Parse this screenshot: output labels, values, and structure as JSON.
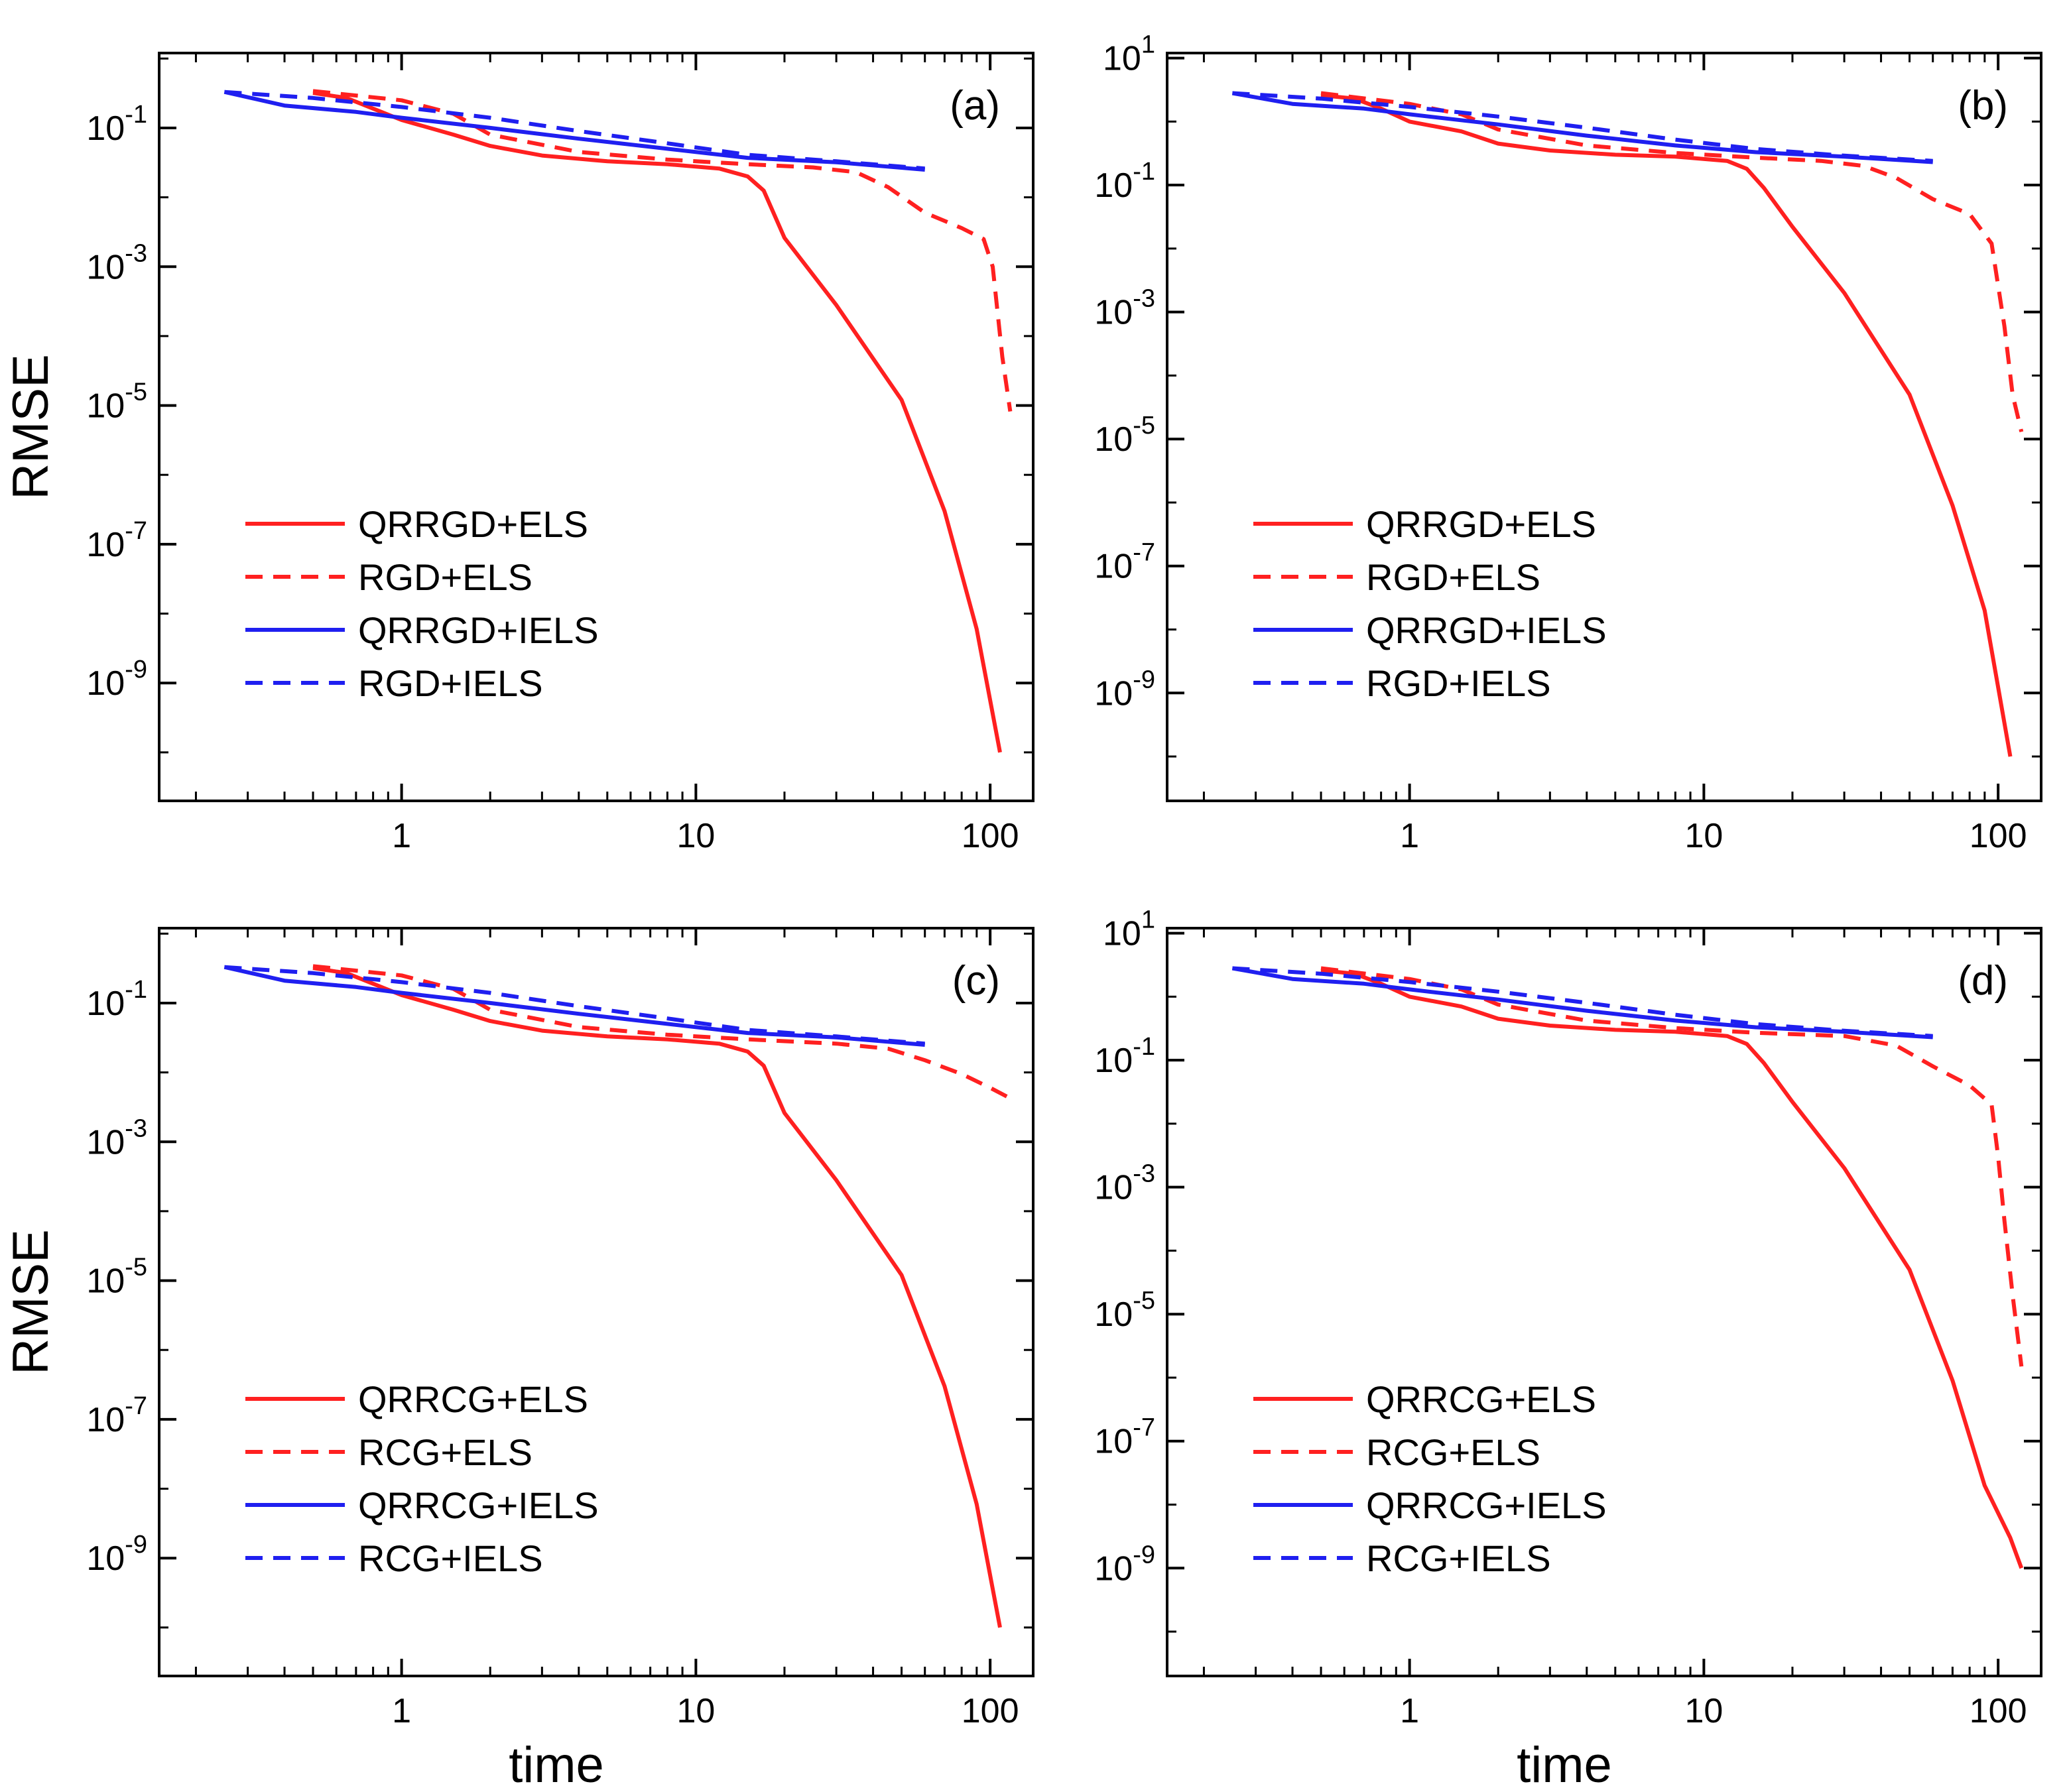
{
  "figure": {
    "shared_xlabel": "time",
    "shared_ylabel": "RMSE",
    "colors": {
      "red": "#ff2020",
      "blue": "#1f1ff0",
      "axis": "#000000"
    }
  },
  "chart_data": [
    {
      "type": "line",
      "panel_label": "(a)",
      "xlabel": "",
      "ylabel": "RMSE",
      "xscale": "log",
      "yscale": "log",
      "xlim": [
        0.15,
        140
      ],
      "ylim": [
        2e-11,
        1.2
      ],
      "x_ticks": [
        1,
        10,
        100
      ],
      "x_tick_labels": [
        "1",
        "10",
        "100"
      ],
      "y_ticks": [
        0.1,
        0.001,
        1e-05,
        1e-07,
        1e-09
      ],
      "y_tick_labels": [
        {
          "base": "10",
          "exp": "-1"
        },
        {
          "base": "10",
          "exp": "-3"
        },
        {
          "base": "10",
          "exp": "-5"
        },
        {
          "base": "10",
          "exp": "-7"
        },
        {
          "base": "10",
          "exp": "-9"
        }
      ],
      "legend_position": "lower-left",
      "series": [
        {
          "name": "QRRGD+ELS",
          "color": "#ff2020",
          "dash": "solid",
          "x": [
            0.5,
            0.65,
            0.8,
            1.0,
            1.5,
            2,
            3,
            5,
            8,
            12,
            15,
            17,
            20,
            30,
            50,
            70,
            90,
            108
          ],
          "y": [
            0.32,
            0.27,
            0.19,
            0.13,
            0.08,
            0.055,
            0.04,
            0.033,
            0.03,
            0.026,
            0.02,
            0.0125,
            0.0026,
            0.00028,
            1.2e-05,
            3e-07,
            6e-09,
            1e-10
          ]
        },
        {
          "name": "RGD+ELS",
          "color": "#ff2020",
          "dash": "dashed",
          "x": [
            0.5,
            1,
            1.5,
            2,
            4,
            8,
            15,
            25,
            35,
            45,
            60,
            80,
            95,
            102,
            110,
            117
          ],
          "y": [
            0.34,
            0.25,
            0.16,
            0.08,
            0.045,
            0.035,
            0.03,
            0.027,
            0.023,
            0.014,
            0.006,
            0.0036,
            0.0025,
            0.001,
            5e-05,
            8.2e-06
          ]
        },
        {
          "name": "QRRGD+IELS",
          "color": "#1f1ff0",
          "dash": "solid",
          "x": [
            0.25,
            0.4,
            0.7,
            1,
            2,
            4,
            8,
            15,
            30,
            60
          ],
          "y": [
            0.33,
            0.21,
            0.17,
            0.14,
            0.1,
            0.07,
            0.05,
            0.037,
            0.032,
            0.025
          ]
        },
        {
          "name": "RGD+IELS",
          "color": "#1f1ff0",
          "dash": "dashed",
          "x": [
            0.25,
            0.5,
            1,
            2,
            4,
            8,
            15,
            30,
            60
          ],
          "y": [
            0.33,
            0.27,
            0.2,
            0.14,
            0.09,
            0.06,
            0.041,
            0.033,
            0.026
          ]
        }
      ]
    },
    {
      "type": "line",
      "panel_label": "(b)",
      "xlabel": "",
      "ylabel": "",
      "xscale": "log",
      "yscale": "log",
      "xlim": [
        0.15,
        140
      ],
      "ylim": [
        2e-11,
        12
      ],
      "x_ticks": [
        1,
        10,
        100
      ],
      "x_tick_labels": [
        "1",
        "10",
        "100"
      ],
      "y_ticks": [
        10,
        0.1,
        0.001,
        1e-05,
        1e-07,
        1e-09
      ],
      "y_tick_labels": [
        {
          "base": "10",
          "exp": "1"
        },
        {
          "base": "10",
          "exp": "-1"
        },
        {
          "base": "10",
          "exp": "-3"
        },
        {
          "base": "10",
          "exp": "-5"
        },
        {
          "base": "10",
          "exp": "-7"
        },
        {
          "base": "10",
          "exp": "-9"
        }
      ],
      "legend_position": "lower-left",
      "series": [
        {
          "name": "QRRGD+ELS",
          "color": "#ff2020",
          "dash": "solid",
          "x": [
            0.5,
            0.65,
            0.8,
            1.0,
            1.5,
            2,
            3,
            5,
            8,
            12,
            14,
            16,
            20,
            30,
            50,
            70,
            90,
            110
          ],
          "y": [
            2.6,
            2.3,
            1.6,
            1.0,
            0.7,
            0.45,
            0.35,
            0.3,
            0.28,
            0.24,
            0.18,
            0.09,
            0.022,
            0.002,
            5e-05,
            9e-07,
            2e-08,
            1e-10
          ]
        },
        {
          "name": "RGD+ELS",
          "color": "#ff2020",
          "dash": "dashed",
          "x": [
            0.5,
            1,
            1.5,
            2,
            4,
            8,
            15,
            25,
            35,
            45,
            60,
            80,
            95,
            105,
            112,
            120
          ],
          "y": [
            2.8,
            1.9,
            1.3,
            0.75,
            0.42,
            0.32,
            0.27,
            0.24,
            0.2,
            0.13,
            0.06,
            0.035,
            0.012,
            0.0006,
            5e-05,
            1.3e-05
          ]
        },
        {
          "name": "QRRGD+IELS",
          "color": "#1f1ff0",
          "dash": "solid",
          "x": [
            0.25,
            0.4,
            0.7,
            1,
            2,
            4,
            8,
            15,
            30,
            60
          ],
          "y": [
            2.8,
            1.9,
            1.6,
            1.3,
            0.9,
            0.6,
            0.42,
            0.33,
            0.28,
            0.23
          ]
        },
        {
          "name": "RGD+IELS",
          "color": "#1f1ff0",
          "dash": "dashed",
          "x": [
            0.25,
            0.5,
            1,
            2,
            4,
            8,
            15,
            30,
            60
          ],
          "y": [
            2.8,
            2.3,
            1.7,
            1.2,
            0.8,
            0.52,
            0.37,
            0.29,
            0.24
          ]
        }
      ]
    },
    {
      "type": "line",
      "panel_label": "(c)",
      "xlabel": "time",
      "ylabel": "RMSE",
      "xscale": "log",
      "yscale": "log",
      "xlim": [
        0.15,
        140
      ],
      "ylim": [
        2e-11,
        1.2
      ],
      "x_ticks": [
        1,
        10,
        100
      ],
      "x_tick_labels": [
        "1",
        "10",
        "100"
      ],
      "y_ticks": [
        0.1,
        0.001,
        1e-05,
        1e-07,
        1e-09
      ],
      "y_tick_labels": [
        {
          "base": "10",
          "exp": "-1"
        },
        {
          "base": "10",
          "exp": "-3"
        },
        {
          "base": "10",
          "exp": "-5"
        },
        {
          "base": "10",
          "exp": "-7"
        },
        {
          "base": "10",
          "exp": "-9"
        }
      ],
      "legend_position": "lower-left",
      "series": [
        {
          "name": "QRRCG+ELS",
          "color": "#ff2020",
          "dash": "solid",
          "x": [
            0.5,
            0.65,
            0.8,
            1.0,
            1.5,
            2,
            3,
            5,
            8,
            12,
            15,
            17,
            20,
            30,
            50,
            70,
            90,
            108
          ],
          "y": [
            0.32,
            0.27,
            0.19,
            0.13,
            0.08,
            0.055,
            0.04,
            0.033,
            0.03,
            0.026,
            0.02,
            0.0125,
            0.0026,
            0.00028,
            1.2e-05,
            3e-07,
            6e-09,
            1e-10
          ]
        },
        {
          "name": "RCG+ELS",
          "color": "#ff2020",
          "dash": "dashed",
          "x": [
            0.5,
            1,
            1.5,
            2,
            4,
            8,
            15,
            30,
            45,
            60,
            80,
            100,
            120
          ],
          "y": [
            0.34,
            0.25,
            0.16,
            0.08,
            0.045,
            0.035,
            0.03,
            0.026,
            0.022,
            0.015,
            0.0095,
            0.006,
            0.004
          ]
        },
        {
          "name": "QRRCG+IELS",
          "color": "#1f1ff0",
          "dash": "solid",
          "x": [
            0.25,
            0.4,
            0.7,
            1,
            2,
            4,
            8,
            15,
            30,
            60
          ],
          "y": [
            0.33,
            0.21,
            0.17,
            0.14,
            0.1,
            0.07,
            0.05,
            0.037,
            0.032,
            0.025
          ]
        },
        {
          "name": "RCG+IELS",
          "color": "#1f1ff0",
          "dash": "dashed",
          "x": [
            0.25,
            0.5,
            1,
            2,
            4,
            8,
            15,
            30,
            60
          ],
          "y": [
            0.33,
            0.27,
            0.2,
            0.14,
            0.09,
            0.06,
            0.041,
            0.033,
            0.026
          ]
        }
      ]
    },
    {
      "type": "line",
      "panel_label": "(d)",
      "xlabel": "time",
      "ylabel": "",
      "xscale": "log",
      "yscale": "log",
      "xlim": [
        0.15,
        140
      ],
      "ylim": [
        2e-11,
        12
      ],
      "x_ticks": [
        1,
        10,
        100
      ],
      "x_tick_labels": [
        "1",
        "10",
        "100"
      ],
      "y_ticks": [
        10,
        0.1,
        0.001,
        1e-05,
        1e-07,
        1e-09
      ],
      "y_tick_labels": [
        {
          "base": "10",
          "exp": "1"
        },
        {
          "base": "10",
          "exp": "-1"
        },
        {
          "base": "10",
          "exp": "-3"
        },
        {
          "base": "10",
          "exp": "-5"
        },
        {
          "base": "10",
          "exp": "-7"
        },
        {
          "base": "10",
          "exp": "-9"
        }
      ],
      "legend_position": "lower-left",
      "series": [
        {
          "name": "QRRCG+ELS",
          "color": "#ff2020",
          "dash": "solid",
          "x": [
            0.5,
            0.65,
            0.8,
            1.0,
            1.5,
            2,
            3,
            5,
            8,
            12,
            14,
            16,
            20,
            30,
            50,
            70,
            90,
            110,
            120
          ],
          "y": [
            2.6,
            2.3,
            1.6,
            1.0,
            0.7,
            0.45,
            0.35,
            0.3,
            0.28,
            0.24,
            0.18,
            0.09,
            0.022,
            0.002,
            5e-05,
            9e-07,
            2e-08,
            3e-09,
            1e-09
          ]
        },
        {
          "name": "RCG+ELS",
          "color": "#ff2020",
          "dash": "dashed",
          "x": [
            0.5,
            1,
            1.5,
            2,
            4,
            8,
            15,
            30,
            45,
            60,
            80,
            95,
            100,
            105,
            112,
            120
          ],
          "y": [
            2.8,
            1.9,
            1.3,
            0.75,
            0.42,
            0.32,
            0.27,
            0.24,
            0.17,
            0.08,
            0.04,
            0.02,
            0.003,
            0.0003,
            2e-05,
            1.5e-06
          ]
        },
        {
          "name": "QRRCG+IELS",
          "color": "#1f1ff0",
          "dash": "solid",
          "x": [
            0.25,
            0.4,
            0.7,
            1,
            2,
            4,
            8,
            15,
            30,
            60
          ],
          "y": [
            2.8,
            1.9,
            1.6,
            1.3,
            0.9,
            0.6,
            0.42,
            0.33,
            0.28,
            0.23
          ]
        },
        {
          "name": "RCG+IELS",
          "color": "#1f1ff0",
          "dash": "dashed",
          "x": [
            0.25,
            0.5,
            1,
            2,
            4,
            8,
            15,
            30,
            60
          ],
          "y": [
            2.8,
            2.3,
            1.7,
            1.2,
            0.8,
            0.52,
            0.37,
            0.29,
            0.24
          ]
        }
      ]
    }
  ]
}
